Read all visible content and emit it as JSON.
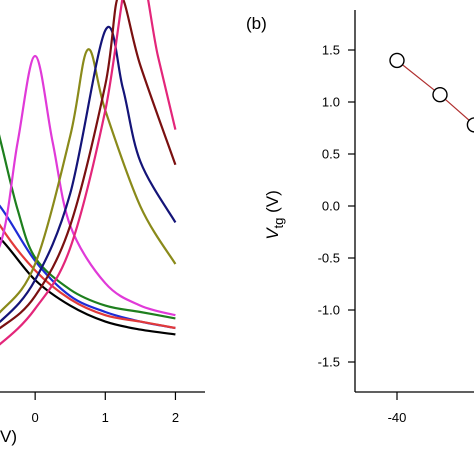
{
  "chart_data": [
    {
      "type": "line",
      "panel": "a",
      "xlabel": "V)",
      "ylabel": "",
      "x_tick_labels": [
        "0",
        "1",
        "2"
      ],
      "xlim": [
        -1.0,
        2.35
      ],
      "ylim": [
        0,
        1
      ],
      "y_ticks_visible": false,
      "series": [
        {
          "color": "#000000",
          "values": [
            [
              -1.0,
              0.47
            ],
            [
              -0.5,
              0.38
            ],
            [
              0,
              0.25
            ],
            [
              0.5,
              0.17
            ],
            [
              1.0,
              0.12
            ],
            [
              1.5,
              0.095
            ],
            [
              2.0,
              0.08
            ]
          ]
        },
        {
          "color": "#1f2bd6",
          "values": [
            [
              -1.0,
              0.6
            ],
            [
              -0.5,
              0.48
            ],
            [
              0,
              0.31
            ],
            [
              0.5,
              0.2
            ],
            [
              1.0,
              0.15
            ],
            [
              1.5,
              0.12
            ],
            [
              2.0,
              0.1
            ]
          ]
        },
        {
          "color": "#1e7f1e",
          "values": [
            [
              -1.0,
              0.78
            ],
            [
              -0.75,
              0.9
            ],
            [
              -0.5,
              0.69
            ],
            [
              -0.25,
              0.47
            ],
            [
              0,
              0.32
            ],
            [
              0.5,
              0.22
            ],
            [
              1.0,
              0.17
            ],
            [
              1.5,
              0.15
            ],
            [
              2.0,
              0.13
            ]
          ]
        },
        {
          "color": "#e23a3a",
          "values": [
            [
              -1.0,
              0.62
            ],
            [
              -0.5,
              0.42
            ],
            [
              0,
              0.28
            ],
            [
              0.5,
              0.19
            ],
            [
              1.0,
              0.14
            ],
            [
              1.5,
              0.12
            ],
            [
              2.0,
              0.1
            ]
          ]
        },
        {
          "color": "#e03ad8",
          "values": [
            [
              -1.0,
              0.21
            ],
            [
              -0.5,
              0.36
            ],
            [
              -0.25,
              0.68
            ],
            [
              0,
              0.95
            ],
            [
              0.25,
              0.68
            ],
            [
              0.5,
              0.42
            ],
            [
              1.0,
              0.24
            ],
            [
              1.5,
              0.17
            ],
            [
              2.0,
              0.14
            ]
          ]
        },
        {
          "color": "#8a8a1a",
          "values": [
            [
              -1.0,
              0.07
            ],
            [
              -0.5,
              0.15
            ],
            [
              0,
              0.3
            ],
            [
              0.5,
              0.7
            ],
            [
              0.75,
              0.97
            ],
            [
              1.0,
              0.78
            ],
            [
              1.5,
              0.48
            ],
            [
              2.0,
              0.3
            ]
          ]
        },
        {
          "color": "#141478",
          "values": [
            [
              -1.0,
              0.05
            ],
            [
              -0.5,
              0.12
            ],
            [
              0,
              0.25
            ],
            [
              0.5,
              0.52
            ],
            [
              1.0,
              1.03
            ],
            [
              1.25,
              0.85
            ],
            [
              1.5,
              0.62
            ],
            [
              2.0,
              0.43
            ]
          ]
        },
        {
          "color": "#7a1010",
          "values": [
            [
              -1.0,
              0.04
            ],
            [
              -0.5,
              0.1
            ],
            [
              0,
              0.2
            ],
            [
              0.5,
              0.42
            ],
            [
              1.0,
              0.86
            ],
            [
              1.2,
              1.14
            ],
            [
              1.5,
              0.92
            ],
            [
              2.0,
              0.61
            ]
          ]
        },
        {
          "color": "#e3267a",
          "values": [
            [
              -1.0,
              -0.02
            ],
            [
              -0.5,
              0.05
            ],
            [
              0,
              0.16
            ],
            [
              0.5,
              0.35
            ],
            [
              1.0,
              0.78
            ],
            [
              1.4,
              1.28
            ],
            [
              1.75,
              0.95
            ],
            [
              2.0,
              0.72
            ]
          ]
        }
      ]
    },
    {
      "type": "scatter",
      "panel": "b",
      "panel_label": "(b)",
      "ylabel_main": "V",
      "ylabel_sub": "tg",
      "ylabel_unit": " (V)",
      "y_tick_labels": [
        "1.5",
        "1.0",
        "0.5",
        "0.0",
        "-0.5",
        "-1.0",
        "-1.5"
      ],
      "x_tick_labels": [
        "-40"
      ],
      "ylim": [
        -1.8,
        1.8
      ],
      "xlim": [
        -50,
        0
      ],
      "marker": "open-circle",
      "line_color": "#b03030",
      "points": [
        [
          -40,
          1.4
        ],
        [
          -30,
          1.07
        ],
        [
          -22,
          0.78
        ]
      ]
    }
  ]
}
